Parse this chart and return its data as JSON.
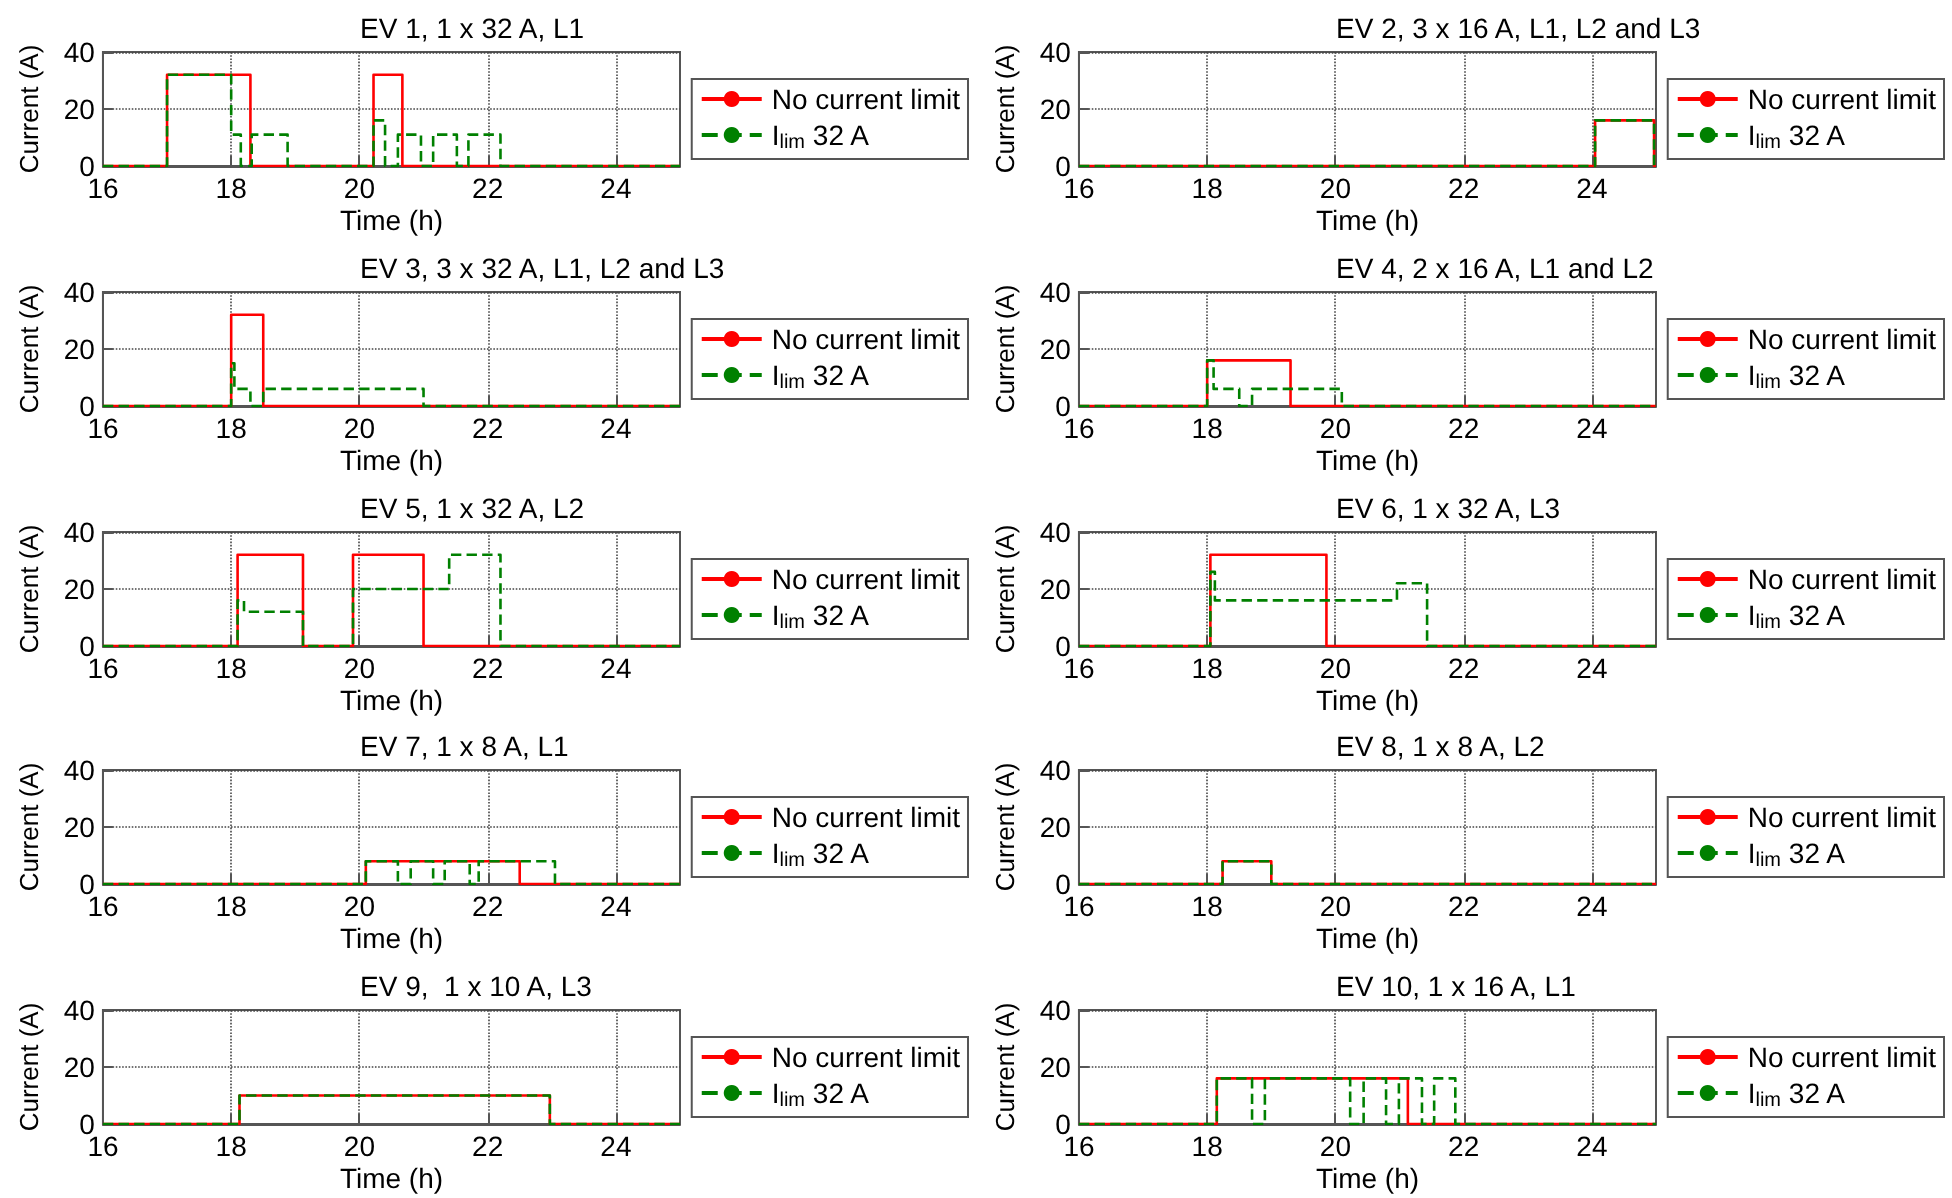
{
  "chart_data": [
    {
      "type": "step",
      "title": "EV 1, 1 x 32 A, L1",
      "xlabel": "Time (h)",
      "ylabel": "Current (A)",
      "xlim": [
        16,
        25
      ],
      "xticks": [
        16,
        18,
        20,
        22,
        24
      ],
      "ylim": [
        0,
        40
      ],
      "yticks": [
        0,
        20,
        40
      ],
      "grid": true,
      "legend": "right",
      "series": [
        {
          "name": "No current limit",
          "color": "#ff0000",
          "line_style": "solid",
          "x": [
            16,
            17,
            18.3,
            20.22,
            20.67,
            25
          ],
          "values": [
            0,
            32,
            0,
            32,
            0,
            0
          ]
        },
        {
          "name": "I$_{lim}$ 32 A",
          "color": "#008000",
          "line_style": "dashed",
          "x": [
            16,
            17,
            18,
            18.15,
            18.32,
            18.88,
            20.22,
            20.4,
            20.6,
            20.96,
            21.15,
            21.52,
            21.7,
            22.2,
            25
          ],
          "values": [
            0,
            32,
            11,
            0,
            11,
            0,
            16,
            0,
            11,
            0,
            11,
            0,
            11,
            0,
            0
          ]
        }
      ]
    },
    {
      "type": "step",
      "title": "EV 2, 3 x 16 A, L1, L2 and L3",
      "xlabel": "Time (h)",
      "ylabel": "Current (A)",
      "xlim": [
        16,
        25
      ],
      "xticks": [
        16,
        18,
        20,
        22,
        24
      ],
      "ylim": [
        0,
        40
      ],
      "yticks": [
        0,
        20,
        40
      ],
      "grid": true,
      "legend": "right",
      "series": [
        {
          "name": "No current limit",
          "color": "#ff0000",
          "line_style": "solid",
          "x": [
            16,
            24.05,
            24.97,
            25
          ],
          "values": [
            0,
            16,
            0,
            0
          ]
        },
        {
          "name": "I$_{lim}$ 32 A",
          "color": "#008000",
          "line_style": "dashed",
          "x": [
            16,
            24.05,
            24.97,
            25
          ],
          "values": [
            0,
            16,
            0,
            0
          ]
        }
      ]
    },
    {
      "type": "step",
      "title": "EV 3, 3 x 32 A, L1, L2 and L3",
      "xlabel": "Time (h)",
      "ylabel": "Current (A)",
      "xlim": [
        16,
        25
      ],
      "xticks": [
        16,
        18,
        20,
        22,
        24
      ],
      "ylim": [
        0,
        40
      ],
      "yticks": [
        0,
        20,
        40
      ],
      "grid": true,
      "legend": "right",
      "series": [
        {
          "name": "No current limit",
          "color": "#ff0000",
          "line_style": "solid",
          "x": [
            16,
            18,
            18.5,
            25
          ],
          "values": [
            0,
            32,
            0,
            0
          ]
        },
        {
          "name": "I$_{lim}$ 32 A",
          "color": "#008000",
          "line_style": "dashed",
          "x": [
            16,
            18,
            18.05,
            18.3,
            18.5,
            21,
            25
          ],
          "values": [
            0,
            15,
            6,
            0,
            6,
            0,
            0
          ]
        }
      ]
    },
    {
      "type": "step",
      "title": "EV 4, 2 x 16 A, L1 and L2",
      "xlabel": "Time (h)",
      "ylabel": "Current (A)",
      "xlim": [
        16,
        25
      ],
      "xticks": [
        16,
        18,
        20,
        22,
        24
      ],
      "ylim": [
        0,
        40
      ],
      "yticks": [
        0,
        20,
        40
      ],
      "grid": true,
      "legend": "right",
      "series": [
        {
          "name": "No current limit",
          "color": "#ff0000",
          "line_style": "solid",
          "x": [
            16,
            18,
            19.3,
            25
          ],
          "values": [
            0,
            16,
            0,
            0
          ]
        },
        {
          "name": "I$_{lim}$ 32 A",
          "color": "#008000",
          "line_style": "dashed",
          "x": [
            16,
            18,
            18.1,
            18.5,
            18.7,
            20.1,
            25
          ],
          "values": [
            0,
            16,
            6,
            0,
            6,
            0,
            0
          ]
        }
      ]
    },
    {
      "type": "step",
      "title": "EV 5, 1 x 32 A, L2",
      "xlabel": "Time (h)",
      "ylabel": "Current (A)",
      "xlim": [
        16,
        25
      ],
      "xticks": [
        16,
        18,
        20,
        22,
        24
      ],
      "ylim": [
        0,
        40
      ],
      "yticks": [
        0,
        20,
        40
      ],
      "grid": true,
      "legend": "right",
      "series": [
        {
          "name": "No current limit",
          "color": "#ff0000",
          "line_style": "solid",
          "x": [
            16,
            18.1,
            19.12,
            19.9,
            21,
            25
          ],
          "values": [
            0,
            32,
            0,
            32,
            0,
            0
          ]
        },
        {
          "name": "I$_{lim}$ 32 A",
          "color": "#008000",
          "line_style": "dashed",
          "x": [
            16,
            18.1,
            18.2,
            19.12,
            19.9,
            21.4,
            22.2,
            25
          ],
          "values": [
            0,
            16,
            12,
            0,
            20,
            32,
            0,
            0
          ]
        }
      ]
    },
    {
      "type": "step",
      "title": "EV 6, 1 x 32 A, L3",
      "xlabel": "Time (h)",
      "ylabel": "Current (A)",
      "xlim": [
        16,
        25
      ],
      "xticks": [
        16,
        18,
        20,
        22,
        24
      ],
      "ylim": [
        0,
        40
      ],
      "yticks": [
        0,
        20,
        40
      ],
      "grid": true,
      "legend": "right",
      "series": [
        {
          "name": "No current limit",
          "color": "#ff0000",
          "line_style": "solid",
          "x": [
            16,
            18.05,
            19.86,
            25
          ],
          "values": [
            0,
            32,
            0,
            0
          ]
        },
        {
          "name": "I$_{lim}$ 32 A",
          "color": "#008000",
          "line_style": "dashed",
          "x": [
            16,
            18.05,
            18.12,
            20.96,
            21.43,
            25
          ],
          "values": [
            0,
            26,
            16,
            22,
            0,
            0
          ]
        }
      ]
    },
    {
      "type": "step",
      "title": "EV 7, 1 x 8 A, L1",
      "xlabel": "Time (h)",
      "ylabel": "Current (A)",
      "xlim": [
        16,
        25
      ],
      "xticks": [
        16,
        18,
        20,
        22,
        24
      ],
      "ylim": [
        0,
        40
      ],
      "yticks": [
        0,
        20,
        40
      ],
      "grid": true,
      "legend": "right",
      "series": [
        {
          "name": "No current limit",
          "color": "#ff0000",
          "line_style": "solid",
          "x": [
            16,
            20.1,
            22.5,
            25
          ],
          "values": [
            0,
            8,
            0,
            0
          ]
        },
        {
          "name": "I$_{lim}$ 32 A",
          "color": "#008000",
          "line_style": "dashed",
          "x": [
            16,
            20.1,
            20.6,
            20.8,
            21.15,
            21.33,
            21.72,
            21.86,
            23.05,
            25
          ],
          "values": [
            0,
            8,
            0,
            8,
            0,
            8,
            0,
            8,
            0,
            0
          ]
        }
      ]
    },
    {
      "type": "step",
      "title": "EV 8, 1 x 8 A, L2",
      "xlabel": "Time (h)",
      "ylabel": "Current (A)",
      "xlim": [
        16,
        25
      ],
      "xticks": [
        16,
        18,
        20,
        22,
        24
      ],
      "ylim": [
        0,
        40
      ],
      "yticks": [
        0,
        20,
        40
      ],
      "grid": true,
      "legend": "right",
      "series": [
        {
          "name": "No current limit",
          "color": "#ff0000",
          "line_style": "solid",
          "x": [
            16,
            18.24,
            19,
            25
          ],
          "values": [
            0,
            8,
            0,
            0
          ]
        },
        {
          "name": "I$_{lim}$ 32 A",
          "color": "#008000",
          "line_style": "dashed",
          "x": [
            16,
            18.24,
            19,
            25
          ],
          "values": [
            0,
            8,
            0,
            0
          ]
        }
      ]
    },
    {
      "type": "step",
      "title": "EV 9,  1 x 10 A, L3",
      "xlabel": "Time (h)",
      "ylabel": "Current (A)",
      "xlim": [
        16,
        25
      ],
      "xticks": [
        16,
        18,
        20,
        22,
        24
      ],
      "ylim": [
        0,
        40
      ],
      "yticks": [
        0,
        20,
        40
      ],
      "grid": true,
      "legend": "right",
      "series": [
        {
          "name": "No current limit",
          "color": "#ff0000",
          "line_style": "solid",
          "x": [
            16,
            18.13,
            22.97,
            25
          ],
          "values": [
            0,
            10,
            0,
            0
          ]
        },
        {
          "name": "I$_{lim}$ 32 A",
          "color": "#008000",
          "line_style": "dashed",
          "x": [
            16,
            18.13,
            22.97,
            25
          ],
          "values": [
            0,
            10,
            0,
            0
          ]
        }
      ]
    },
    {
      "type": "step",
      "title": "EV 10, 1 x 16 A, L1",
      "xlabel": "Time (h)",
      "ylabel": "Current (A)",
      "xlim": [
        16,
        25
      ],
      "xticks": [
        16,
        18,
        20,
        22,
        24
      ],
      "ylim": [
        0,
        40
      ],
      "yticks": [
        0,
        20,
        40
      ],
      "grid": true,
      "legend": "right",
      "series": [
        {
          "name": "No current limit",
          "color": "#ff0000",
          "line_style": "solid",
          "x": [
            16,
            18.15,
            21.13,
            25
          ],
          "values": [
            0,
            16,
            0,
            0
          ]
        },
        {
          "name": "I$_{lim}$ 32 A",
          "color": "#008000",
          "line_style": "dashed",
          "x": [
            16,
            18.15,
            18.7,
            18.9,
            20.23,
            20.44,
            20.79,
            20.99,
            21.35,
            21.54,
            21.87,
            25
          ],
          "values": [
            0,
            16,
            0,
            16,
            0,
            16,
            0,
            16,
            0,
            16,
            0,
            0
          ]
        }
      ]
    }
  ]
}
